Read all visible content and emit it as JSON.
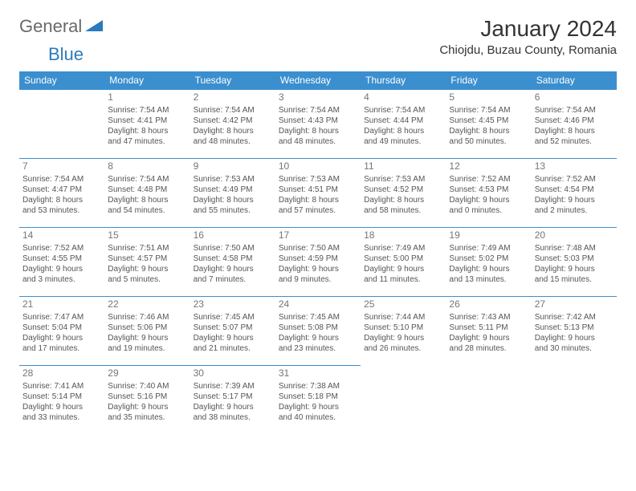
{
  "logo": {
    "general": "General",
    "blue": "Blue"
  },
  "title": "January 2024",
  "subtitle": "Chiojdu, Buzau County, Romania",
  "weekdays": [
    "Sunday",
    "Monday",
    "Tuesday",
    "Wednesday",
    "Thursday",
    "Friday",
    "Saturday"
  ],
  "colors": {
    "header_bg": "#3b8fcf",
    "header_text": "#ffffff",
    "border": "#3b8fcf",
    "daynum": "#757575",
    "body_text": "#555555",
    "logo_gray": "#6a6a6a",
    "logo_blue": "#2a7bbd"
  },
  "typography": {
    "title_fontsize": 28,
    "subtitle_fontsize": 15,
    "weekday_fontsize": 12,
    "daynum_fontsize": 12,
    "cell_fontsize": 10
  },
  "start_offset": 1,
  "days": [
    {
      "n": 1,
      "sr": "Sunrise: 7:54 AM",
      "ss": "Sunset: 4:41 PM",
      "d1": "Daylight: 8 hours",
      "d2": "and 47 minutes."
    },
    {
      "n": 2,
      "sr": "Sunrise: 7:54 AM",
      "ss": "Sunset: 4:42 PM",
      "d1": "Daylight: 8 hours",
      "d2": "and 48 minutes."
    },
    {
      "n": 3,
      "sr": "Sunrise: 7:54 AM",
      "ss": "Sunset: 4:43 PM",
      "d1": "Daylight: 8 hours",
      "d2": "and 48 minutes."
    },
    {
      "n": 4,
      "sr": "Sunrise: 7:54 AM",
      "ss": "Sunset: 4:44 PM",
      "d1": "Daylight: 8 hours",
      "d2": "and 49 minutes."
    },
    {
      "n": 5,
      "sr": "Sunrise: 7:54 AM",
      "ss": "Sunset: 4:45 PM",
      "d1": "Daylight: 8 hours",
      "d2": "and 50 minutes."
    },
    {
      "n": 6,
      "sr": "Sunrise: 7:54 AM",
      "ss": "Sunset: 4:46 PM",
      "d1": "Daylight: 8 hours",
      "d2": "and 52 minutes."
    },
    {
      "n": 7,
      "sr": "Sunrise: 7:54 AM",
      "ss": "Sunset: 4:47 PM",
      "d1": "Daylight: 8 hours",
      "d2": "and 53 minutes."
    },
    {
      "n": 8,
      "sr": "Sunrise: 7:54 AM",
      "ss": "Sunset: 4:48 PM",
      "d1": "Daylight: 8 hours",
      "d2": "and 54 minutes."
    },
    {
      "n": 9,
      "sr": "Sunrise: 7:53 AM",
      "ss": "Sunset: 4:49 PM",
      "d1": "Daylight: 8 hours",
      "d2": "and 55 minutes."
    },
    {
      "n": 10,
      "sr": "Sunrise: 7:53 AM",
      "ss": "Sunset: 4:51 PM",
      "d1": "Daylight: 8 hours",
      "d2": "and 57 minutes."
    },
    {
      "n": 11,
      "sr": "Sunrise: 7:53 AM",
      "ss": "Sunset: 4:52 PM",
      "d1": "Daylight: 8 hours",
      "d2": "and 58 minutes."
    },
    {
      "n": 12,
      "sr": "Sunrise: 7:52 AM",
      "ss": "Sunset: 4:53 PM",
      "d1": "Daylight: 9 hours",
      "d2": "and 0 minutes."
    },
    {
      "n": 13,
      "sr": "Sunrise: 7:52 AM",
      "ss": "Sunset: 4:54 PM",
      "d1": "Daylight: 9 hours",
      "d2": "and 2 minutes."
    },
    {
      "n": 14,
      "sr": "Sunrise: 7:52 AM",
      "ss": "Sunset: 4:55 PM",
      "d1": "Daylight: 9 hours",
      "d2": "and 3 minutes."
    },
    {
      "n": 15,
      "sr": "Sunrise: 7:51 AM",
      "ss": "Sunset: 4:57 PM",
      "d1": "Daylight: 9 hours",
      "d2": "and 5 minutes."
    },
    {
      "n": 16,
      "sr": "Sunrise: 7:50 AM",
      "ss": "Sunset: 4:58 PM",
      "d1": "Daylight: 9 hours",
      "d2": "and 7 minutes."
    },
    {
      "n": 17,
      "sr": "Sunrise: 7:50 AM",
      "ss": "Sunset: 4:59 PM",
      "d1": "Daylight: 9 hours",
      "d2": "and 9 minutes."
    },
    {
      "n": 18,
      "sr": "Sunrise: 7:49 AM",
      "ss": "Sunset: 5:00 PM",
      "d1": "Daylight: 9 hours",
      "d2": "and 11 minutes."
    },
    {
      "n": 19,
      "sr": "Sunrise: 7:49 AM",
      "ss": "Sunset: 5:02 PM",
      "d1": "Daylight: 9 hours",
      "d2": "and 13 minutes."
    },
    {
      "n": 20,
      "sr": "Sunrise: 7:48 AM",
      "ss": "Sunset: 5:03 PM",
      "d1": "Daylight: 9 hours",
      "d2": "and 15 minutes."
    },
    {
      "n": 21,
      "sr": "Sunrise: 7:47 AM",
      "ss": "Sunset: 5:04 PM",
      "d1": "Daylight: 9 hours",
      "d2": "and 17 minutes."
    },
    {
      "n": 22,
      "sr": "Sunrise: 7:46 AM",
      "ss": "Sunset: 5:06 PM",
      "d1": "Daylight: 9 hours",
      "d2": "and 19 minutes."
    },
    {
      "n": 23,
      "sr": "Sunrise: 7:45 AM",
      "ss": "Sunset: 5:07 PM",
      "d1": "Daylight: 9 hours",
      "d2": "and 21 minutes."
    },
    {
      "n": 24,
      "sr": "Sunrise: 7:45 AM",
      "ss": "Sunset: 5:08 PM",
      "d1": "Daylight: 9 hours",
      "d2": "and 23 minutes."
    },
    {
      "n": 25,
      "sr": "Sunrise: 7:44 AM",
      "ss": "Sunset: 5:10 PM",
      "d1": "Daylight: 9 hours",
      "d2": "and 26 minutes."
    },
    {
      "n": 26,
      "sr": "Sunrise: 7:43 AM",
      "ss": "Sunset: 5:11 PM",
      "d1": "Daylight: 9 hours",
      "d2": "and 28 minutes."
    },
    {
      "n": 27,
      "sr": "Sunrise: 7:42 AM",
      "ss": "Sunset: 5:13 PM",
      "d1": "Daylight: 9 hours",
      "d2": "and 30 minutes."
    },
    {
      "n": 28,
      "sr": "Sunrise: 7:41 AM",
      "ss": "Sunset: 5:14 PM",
      "d1": "Daylight: 9 hours",
      "d2": "and 33 minutes."
    },
    {
      "n": 29,
      "sr": "Sunrise: 7:40 AM",
      "ss": "Sunset: 5:16 PM",
      "d1": "Daylight: 9 hours",
      "d2": "and 35 minutes."
    },
    {
      "n": 30,
      "sr": "Sunrise: 7:39 AM",
      "ss": "Sunset: 5:17 PM",
      "d1": "Daylight: 9 hours",
      "d2": "and 38 minutes."
    },
    {
      "n": 31,
      "sr": "Sunrise: 7:38 AM",
      "ss": "Sunset: 5:18 PM",
      "d1": "Daylight: 9 hours",
      "d2": "and 40 minutes."
    }
  ]
}
